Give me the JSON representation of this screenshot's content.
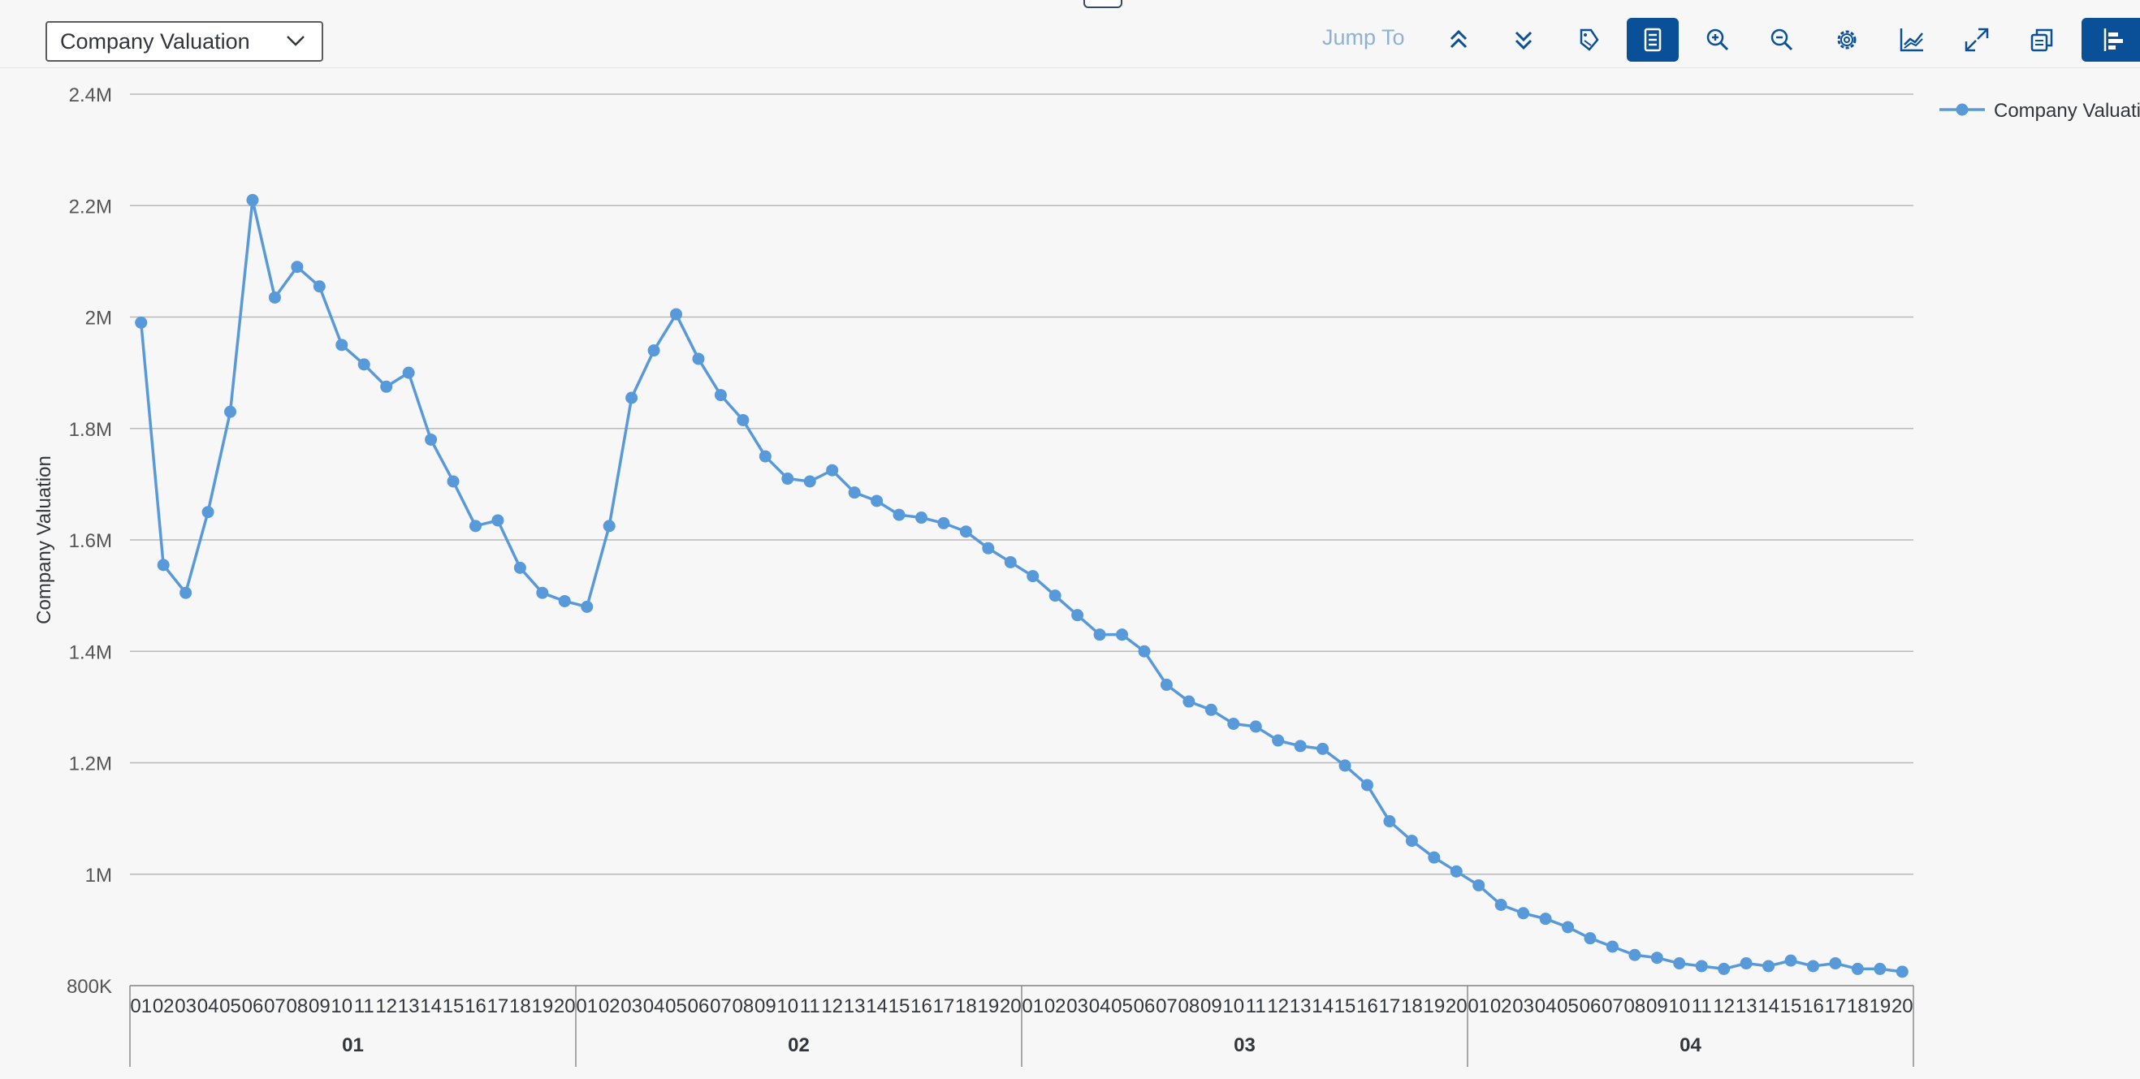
{
  "toolbar": {
    "measure_select_value": "Company Valuation",
    "jump_to_label": "Jump To",
    "buttons": [
      {
        "name": "jump-top-button",
        "icon": "double-chevron-up-icon",
        "active": false
      },
      {
        "name": "jump-bottom-button",
        "icon": "double-chevron-down-icon",
        "active": false
      },
      {
        "name": "tags-button",
        "icon": "tags-icon",
        "active": false
      },
      {
        "name": "table-view-button",
        "icon": "list-icon",
        "active": true
      },
      {
        "name": "zoom-in-button",
        "icon": "zoom-in-icon",
        "active": false
      },
      {
        "name": "zoom-out-button",
        "icon": "zoom-out-icon",
        "active": false
      },
      {
        "name": "settings-button",
        "icon": "gear-icon",
        "active": false
      },
      {
        "name": "chart-type-button",
        "icon": "line-chart-icon",
        "active": false
      },
      {
        "name": "fullscreen-button",
        "icon": "expand-icon",
        "active": false
      },
      {
        "name": "copy-button",
        "icon": "copy-icon",
        "active": false
      },
      {
        "name": "bar-chart-button",
        "icon": "bar-chart-icon",
        "active": true
      }
    ],
    "accent_color": "#0a5098"
  },
  "chart_data": {
    "type": "line",
    "ylabel": "Company Valuation",
    "ylim": [
      800000,
      2400000
    ],
    "yticks": [
      800000,
      1000000,
      1200000,
      1400000,
      1600000,
      1800000,
      2000000,
      2200000,
      2400000
    ],
    "ytick_labels": [
      "800K",
      "1M",
      "1.2M",
      "1.4M",
      "1.6M",
      "1.8M",
      "2M",
      "2.2M",
      "2.4M"
    ],
    "grid": true,
    "legend_position": "top-right",
    "line_color": "#5899da",
    "group_labels": [
      "01",
      "02",
      "03",
      "04"
    ],
    "sub_labels": [
      "01",
      "02",
      "03",
      "04",
      "05",
      "06",
      "07",
      "08",
      "09",
      "10",
      "11",
      "12",
      "13",
      "14",
      "15",
      "16",
      "17",
      "18",
      "19",
      "20"
    ],
    "series": [
      {
        "name": "Company Valuation",
        "values": [
          1990000,
          1555000,
          1505000,
          1650000,
          1830000,
          2210000,
          2035000,
          2090000,
          2055000,
          1950000,
          1915000,
          1875000,
          1900000,
          1780000,
          1705000,
          1625000,
          1635000,
          1550000,
          1505000,
          1490000,
          1480000,
          1625000,
          1855000,
          1940000,
          2005000,
          1925000,
          1860000,
          1815000,
          1750000,
          1710000,
          1705000,
          1725000,
          1685000,
          1670000,
          1645000,
          1640000,
          1630000,
          1615000,
          1585000,
          1560000,
          1535000,
          1500000,
          1465000,
          1430000,
          1430000,
          1400000,
          1340000,
          1310000,
          1295000,
          1270000,
          1265000,
          1240000,
          1230000,
          1225000,
          1195000,
          1160000,
          1095000,
          1060000,
          1030000,
          1005000,
          980000,
          945000,
          930000,
          920000,
          905000,
          885000,
          870000,
          855000,
          850000,
          840000,
          835000,
          830000,
          840000,
          835000,
          845000,
          835000,
          840000,
          830000,
          830000,
          825000
        ]
      }
    ]
  }
}
